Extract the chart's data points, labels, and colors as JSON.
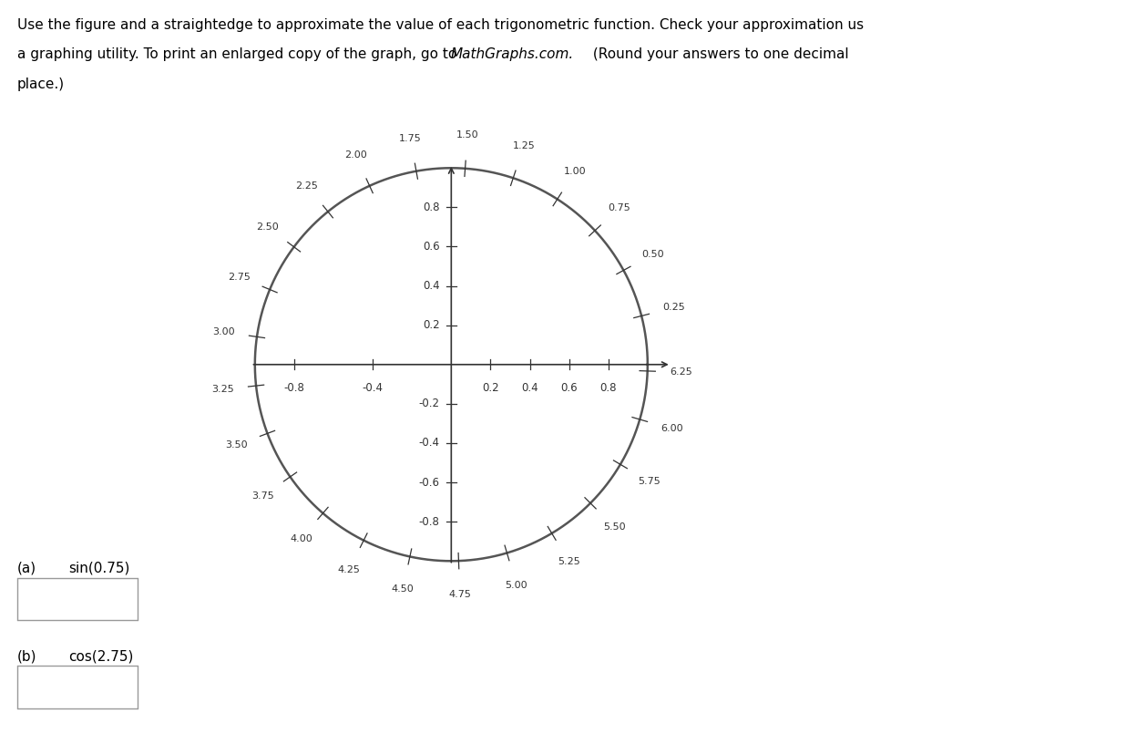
{
  "background_color": "#ffffff",
  "circle_color": "#555555",
  "circle_linewidth": 1.8,
  "axis_color": "#333333",
  "tick_color": "#333333",
  "label_fontsize": 8.5,
  "title_fontsize": 11,
  "angle_labels": [
    0.25,
    0.5,
    0.75,
    1.0,
    1.25,
    1.5,
    1.75,
    2.0,
    2.25,
    2.5,
    2.75,
    3.0,
    3.25,
    3.5,
    3.75,
    4.0,
    4.25,
    4.5,
    4.75,
    5.0,
    5.25,
    5.5,
    5.75,
    6.0,
    6.25
  ],
  "x_tick_values": [
    -0.8,
    -0.4,
    0.2,
    0.4,
    0.6,
    0.8
  ],
  "y_tick_values": [
    0.2,
    0.4,
    0.6,
    0.8,
    -0.2,
    -0.4,
    -0.6,
    -0.8
  ],
  "title_line1": "Use the figure and a straightedge to approximate the value of each trigonometric function. Check your approximation us",
  "title_line2_pre": "a graphing utility. To print an enlarged copy of the graph, go to ",
  "title_line2_italic": "MathGraphs.com.",
  "title_line2_post": " (Round your answers to one decimal",
  "title_line3": "place.)",
  "qa_label": "(a)   sin(0.75)",
  "qb_label": "(b)   cos(2.75)"
}
